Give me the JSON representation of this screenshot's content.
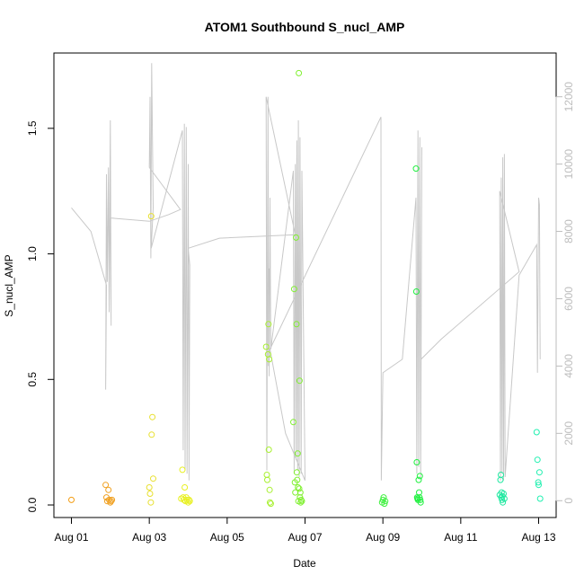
{
  "chart_data": {
    "type": "scatter",
    "title": "ATOM1 Southbound S_nucl_AMP",
    "xlabel": "Date",
    "ylabel": "S_nucl_AMP",
    "x_ticks": [
      "Aug 01",
      "Aug 03",
      "Aug 05",
      "Aug 07",
      "Aug 09",
      "Aug 11",
      "Aug 13"
    ],
    "x_tick_values": [
      0,
      2,
      4,
      6,
      8,
      10,
      12
    ],
    "xlim": [
      -0.45,
      12.45
    ],
    "ylim": [
      -0.05,
      1.8
    ],
    "y_ticks": [
      "0.0",
      "0.5",
      "1.0",
      "1.5"
    ],
    "y_tick_values": [
      0.0,
      0.5,
      1.0,
      1.5
    ],
    "secondary_axis": {
      "side": "right",
      "color": "#bdbdbd",
      "ylim": [
        -500,
        13300
      ],
      "ticks": [
        "0",
        "2000",
        "4000",
        "6000",
        "8000",
        "10000",
        "12000"
      ],
      "tick_values": [
        0,
        2000,
        4000,
        6000,
        8000,
        10000,
        12000
      ]
    },
    "points": [
      {
        "x": 0.0,
        "y": 0.02,
        "color": "#f39c12"
      },
      {
        "x": 0.88,
        "y": 0.08,
        "color": "#f0a020"
      },
      {
        "x": 0.9,
        "y": 0.03,
        "color": "#f0a020"
      },
      {
        "x": 0.92,
        "y": 0.015,
        "color": "#f0a020"
      },
      {
        "x": 0.95,
        "y": 0.06,
        "color": "#f0a020"
      },
      {
        "x": 0.97,
        "y": 0.02,
        "color": "#f0a020"
      },
      {
        "x": 1.0,
        "y": 0.01,
        "color": "#f0a020"
      },
      {
        "x": 1.02,
        "y": 0.015,
        "color": "#f0a020"
      },
      {
        "x": 1.04,
        "y": 0.02,
        "color": "#f0a020"
      },
      {
        "x": 2.0,
        "y": 0.07,
        "color": "#e8e030"
      },
      {
        "x": 2.02,
        "y": 0.045,
        "color": "#e8e030"
      },
      {
        "x": 2.04,
        "y": 0.01,
        "color": "#e8e030"
      },
      {
        "x": 2.05,
        "y": 1.15,
        "color": "#e8e030"
      },
      {
        "x": 2.06,
        "y": 0.28,
        "color": "#e8e030"
      },
      {
        "x": 2.08,
        "y": 0.35,
        "color": "#e8e030"
      },
      {
        "x": 2.1,
        "y": 0.105,
        "color": "#e8e030"
      },
      {
        "x": 2.82,
        "y": 0.025,
        "color": "#e8f020"
      },
      {
        "x": 2.85,
        "y": 0.14,
        "color": "#e8f020"
      },
      {
        "x": 2.87,
        "y": 0.03,
        "color": "#e8f020"
      },
      {
        "x": 2.89,
        "y": 0.02,
        "color": "#e8f020"
      },
      {
        "x": 2.91,
        "y": 0.07,
        "color": "#e8f020"
      },
      {
        "x": 2.93,
        "y": 0.015,
        "color": "#e8f020"
      },
      {
        "x": 2.95,
        "y": 0.03,
        "color": "#e8f020"
      },
      {
        "x": 2.97,
        "y": 0.02,
        "color": "#e8f020"
      },
      {
        "x": 3.0,
        "y": 0.01,
        "color": "#e8f020"
      },
      {
        "x": 3.02,
        "y": 0.02,
        "color": "#e8f020"
      },
      {
        "x": 3.04,
        "y": 0.015,
        "color": "#e8f020"
      },
      {
        "x": 5.0,
        "y": 0.63,
        "color": "#a8f030"
      },
      {
        "x": 5.02,
        "y": 0.12,
        "color": "#a8f030"
      },
      {
        "x": 5.03,
        "y": 0.1,
        "color": "#a8f030"
      },
      {
        "x": 5.05,
        "y": 0.6,
        "color": "#a8f030"
      },
      {
        "x": 5.06,
        "y": 0.72,
        "color": "#a8f030"
      },
      {
        "x": 5.07,
        "y": 0.22,
        "color": "#a8f030"
      },
      {
        "x": 5.08,
        "y": 0.58,
        "color": "#a8f030"
      },
      {
        "x": 5.09,
        "y": 0.06,
        "color": "#a8f030"
      },
      {
        "x": 5.1,
        "y": 0.01,
        "color": "#a8f030"
      },
      {
        "x": 5.12,
        "y": 0.005,
        "color": "#a8f030"
      },
      {
        "x": 5.7,
        "y": 0.33,
        "color": "#80f030"
      },
      {
        "x": 5.72,
        "y": 0.86,
        "color": "#80f030"
      },
      {
        "x": 5.74,
        "y": 0.09,
        "color": "#80f030"
      },
      {
        "x": 5.75,
        "y": 0.05,
        "color": "#80f030"
      },
      {
        "x": 5.77,
        "y": 1.065,
        "color": "#80f030"
      },
      {
        "x": 5.78,
        "y": 0.72,
        "color": "#80f030"
      },
      {
        "x": 5.79,
        "y": 0.13,
        "color": "#80f030"
      },
      {
        "x": 5.8,
        "y": 0.1,
        "color": "#80f030"
      },
      {
        "x": 5.81,
        "y": 0.205,
        "color": "#80f030"
      },
      {
        "x": 5.82,
        "y": 0.07,
        "color": "#80f030"
      },
      {
        "x": 5.83,
        "y": 0.015,
        "color": "#80f030"
      },
      {
        "x": 5.84,
        "y": 1.72,
        "color": "#80f030"
      },
      {
        "x": 5.85,
        "y": 0.065,
        "color": "#80f030"
      },
      {
        "x": 5.86,
        "y": 0.495,
        "color": "#80f030"
      },
      {
        "x": 5.87,
        "y": 0.03,
        "color": "#80f030"
      },
      {
        "x": 5.88,
        "y": 0.05,
        "color": "#80f030"
      },
      {
        "x": 5.89,
        "y": 0.01,
        "color": "#80f030"
      },
      {
        "x": 5.9,
        "y": 0.02,
        "color": "#80f030"
      },
      {
        "x": 5.92,
        "y": 0.015,
        "color": "#80f030"
      },
      {
        "x": 7.98,
        "y": 0.01,
        "color": "#40f040"
      },
      {
        "x": 8.0,
        "y": 0.02,
        "color": "#40f040"
      },
      {
        "x": 8.02,
        "y": 0.03,
        "color": "#40f040"
      },
      {
        "x": 8.04,
        "y": 0.005,
        "color": "#40f040"
      },
      {
        "x": 8.06,
        "y": 0.015,
        "color": "#40f040"
      },
      {
        "x": 8.85,
        "y": 1.34,
        "color": "#20f040"
      },
      {
        "x": 8.86,
        "y": 0.85,
        "color": "#20f040"
      },
      {
        "x": 8.87,
        "y": 0.17,
        "color": "#20f040"
      },
      {
        "x": 8.88,
        "y": 0.03,
        "color": "#20f040"
      },
      {
        "x": 8.89,
        "y": 0.025,
        "color": "#20f040"
      },
      {
        "x": 8.9,
        "y": 0.02,
        "color": "#20f040"
      },
      {
        "x": 8.92,
        "y": 0.1,
        "color": "#20f040"
      },
      {
        "x": 8.93,
        "y": 0.05,
        "color": "#20f040"
      },
      {
        "x": 8.94,
        "y": 0.03,
        "color": "#20f040"
      },
      {
        "x": 8.95,
        "y": 0.115,
        "color": "#20f040"
      },
      {
        "x": 8.96,
        "y": 0.02,
        "color": "#20f040"
      },
      {
        "x": 8.97,
        "y": 0.01,
        "color": "#20f040"
      },
      {
        "x": 11.0,
        "y": 0.04,
        "color": "#20e8a0"
      },
      {
        "x": 11.02,
        "y": 0.1,
        "color": "#20e8a0"
      },
      {
        "x": 11.03,
        "y": 0.12,
        "color": "#20e8a0"
      },
      {
        "x": 11.04,
        "y": 0.03,
        "color": "#20e8a0"
      },
      {
        "x": 11.05,
        "y": 0.05,
        "color": "#20e8a0"
      },
      {
        "x": 11.06,
        "y": 0.02,
        "color": "#20e8a0"
      },
      {
        "x": 11.07,
        "y": 0.035,
        "color": "#20e8a0"
      },
      {
        "x": 11.08,
        "y": 0.01,
        "color": "#20e8a0"
      },
      {
        "x": 11.1,
        "y": 0.045,
        "color": "#20e8a0"
      },
      {
        "x": 11.12,
        "y": 0.025,
        "color": "#20e8a0"
      },
      {
        "x": 11.95,
        "y": 0.29,
        "color": "#20f0b0"
      },
      {
        "x": 11.97,
        "y": 0.18,
        "color": "#20f0b0"
      },
      {
        "x": 11.99,
        "y": 0.09,
        "color": "#20f0b0"
      },
      {
        "x": 12.0,
        "y": 0.08,
        "color": "#20f0b0"
      },
      {
        "x": 12.02,
        "y": 0.13,
        "color": "#20f0b0"
      },
      {
        "x": 12.04,
        "y": 0.025,
        "color": "#20f0b0"
      }
    ],
    "line_series": {
      "color": "#c8c8c8",
      "axis": "right",
      "points": [
        [
          0.0,
          8700
        ],
        [
          0.5,
          8000
        ],
        [
          0.9,
          6400
        ],
        [
          0.88,
          3300
        ],
        [
          0.9,
          9700
        ],
        [
          0.92,
          6500
        ],
        [
          0.95,
          9900
        ],
        [
          0.97,
          5600
        ],
        [
          1.0,
          11300
        ],
        [
          1.02,
          5200
        ],
        [
          1.0,
          8400
        ],
        [
          2.0,
          8300
        ],
        [
          2.5,
          8500
        ],
        [
          2.8,
          8650
        ],
        [
          2.0,
          9900
        ],
        [
          2.02,
          12000
        ],
        [
          2.04,
          7200
        ],
        [
          2.06,
          13000
        ],
        [
          2.1,
          8700
        ],
        [
          2.05,
          7500
        ],
        [
          2.85,
          11000
        ],
        [
          2.87,
          1500
        ],
        [
          2.9,
          11200
        ],
        [
          2.92,
          900
        ],
        [
          2.95,
          11100
        ],
        [
          2.97,
          800
        ],
        [
          3.0,
          10000
        ],
        [
          3.02,
          600
        ],
        [
          3.04,
          7000
        ],
        [
          3.0,
          7500
        ],
        [
          3.8,
          7800
        ],
        [
          5.75,
          7900
        ],
        [
          5.0,
          12000
        ],
        [
          5.02,
          900
        ],
        [
          5.05,
          12000
        ],
        [
          5.06,
          4000
        ],
        [
          5.07,
          6900
        ],
        [
          5.08,
          3700
        ],
        [
          5.1,
          9000
        ],
        [
          5.12,
          4500
        ],
        [
          5.7,
          9800
        ],
        [
          5.72,
          800
        ],
        [
          5.75,
          10000
        ],
        [
          5.77,
          1200
        ],
        [
          5.79,
          10700
        ],
        [
          5.81,
          900
        ],
        [
          5.83,
          11300
        ],
        [
          5.85,
          700
        ],
        [
          5.87,
          10800
        ],
        [
          5.9,
          800
        ],
        [
          5.92,
          9800
        ],
        [
          6.0,
          600
        ],
        [
          5.5,
          2000
        ],
        [
          5.1,
          4500
        ],
        [
          7.95,
          11400
        ],
        [
          7.96,
          600
        ],
        [
          8.0,
          3800
        ],
        [
          8.5,
          4200
        ],
        [
          8.85,
          9000
        ],
        [
          8.87,
          800
        ],
        [
          8.9,
          11000
        ],
        [
          8.92,
          1000
        ],
        [
          8.95,
          10800
        ],
        [
          8.97,
          700
        ],
        [
          9.0,
          10500
        ],
        [
          8.98,
          4200
        ],
        [
          9.5,
          4800
        ],
        [
          11.5,
          6800
        ],
        [
          11.0,
          9200
        ],
        [
          11.02,
          600
        ],
        [
          11.04,
          9600
        ],
        [
          11.06,
          800
        ],
        [
          11.08,
          10200
        ],
        [
          11.1,
          600
        ],
        [
          11.12,
          10300
        ],
        [
          11.14,
          700
        ],
        [
          11.5,
          6700
        ],
        [
          11.95,
          7600
        ],
        [
          11.97,
          3800
        ],
        [
          12.0,
          9000
        ],
        [
          12.02,
          8800
        ],
        [
          12.04,
          4200
        ]
      ]
    }
  }
}
